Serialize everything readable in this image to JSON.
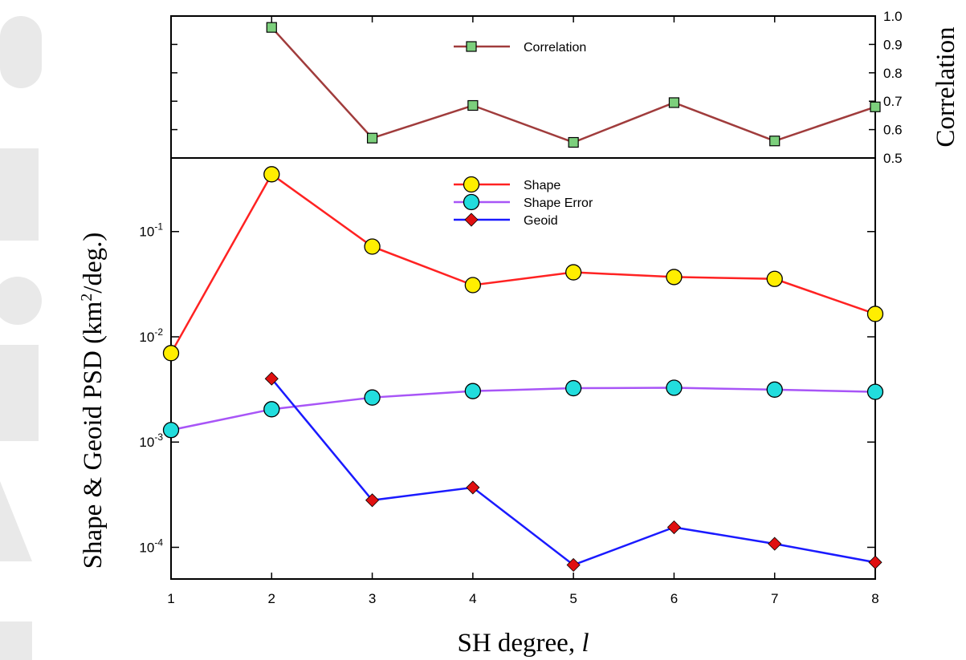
{
  "chart_data": [
    {
      "type": "line",
      "panel": "top",
      "x": [
        2,
        3,
        4,
        5,
        6,
        7,
        8
      ],
      "series": [
        {
          "name": "Correlation",
          "values": [
            0.96,
            0.57,
            0.685,
            0.555,
            0.695,
            0.56,
            0.68
          ],
          "color": "#a03c3c",
          "marker": "square",
          "marker_color": "#7ccf7c"
        }
      ],
      "xlim": [
        1,
        8
      ],
      "ylim": [
        0.5,
        1.0
      ],
      "yticks": [
        0.5,
        0.6,
        0.7,
        0.8,
        0.9,
        1.0
      ],
      "ytick_labels": [
        "0.5",
        "0.6",
        "0.7",
        "0.8",
        "0.9",
        "1.0"
      ],
      "ylabel": "Correlation",
      "yaxis_side": "right",
      "legend": "top-center"
    },
    {
      "type": "line",
      "panel": "bottom",
      "yscale": "log",
      "xlim": [
        1,
        8
      ],
      "ylim": [
        5e-05,
        0.5
      ],
      "xticks": [
        1,
        2,
        3,
        4,
        5,
        6,
        7,
        8
      ],
      "xtick_labels": [
        "1",
        "2",
        "3",
        "4",
        "5",
        "6",
        "7",
        "8"
      ],
      "yticks": [
        0.0001,
        0.001,
        0.01,
        0.1
      ],
      "ytick_labels": [
        {
          "base": "10",
          "exp": "-4"
        },
        {
          "base": "10",
          "exp": "-3"
        },
        {
          "base": "10",
          "exp": "-2"
        },
        {
          "base": "10",
          "exp": "-1"
        }
      ],
      "ylabel_parts": {
        "pre": "Shape & Geoid PSD (km",
        "sup": "2",
        "post": "/deg.)"
      },
      "xlabel_parts": {
        "pre": "SH degree, ",
        "var": "l"
      },
      "legend": "top-center",
      "series": [
        {
          "name": "Shape",
          "x": [
            1,
            2,
            3,
            4,
            5,
            6,
            7,
            8
          ],
          "values": [
            0.007,
            0.35,
            0.072,
            0.031,
            0.041,
            0.037,
            0.0355,
            0.0165
          ],
          "color": "#ff2222",
          "marker": "circle",
          "marker_color": "#ffee00"
        },
        {
          "name": "Shape Error",
          "x": [
            1,
            2,
            3,
            4,
            5,
            6,
            7,
            8
          ],
          "values": [
            0.0013,
            0.00205,
            0.00265,
            0.00305,
            0.00325,
            0.00328,
            0.00315,
            0.003
          ],
          "color": "#a855f7",
          "marker": "circle",
          "marker_color": "#22dddd"
        },
        {
          "name": "Geoid",
          "x": [
            2,
            3,
            4,
            5,
            6,
            7,
            8
          ],
          "values": [
            0.004,
            0.00028,
            0.00037,
            6.8e-05,
            0.000155,
            0.000108,
            7.2e-05
          ],
          "color": "#1a1aff",
          "marker": "diamond",
          "marker_color": "#e01010"
        }
      ]
    }
  ]
}
